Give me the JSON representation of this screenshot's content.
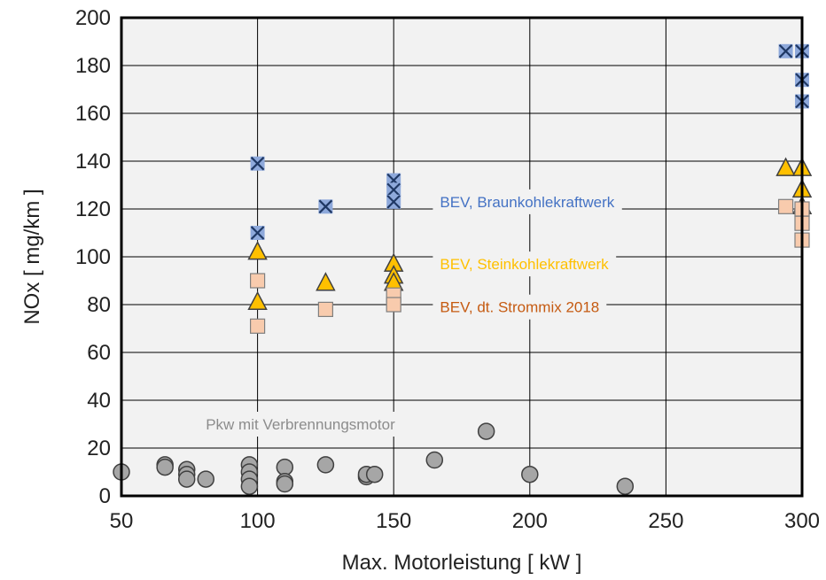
{
  "chart_data": {
    "type": "scatter",
    "xlabel": "Max. Motorleistung  [ kW ]",
    "ylabel": "NOx  [ mg/km ]",
    "xlim": [
      50,
      300
    ],
    "ylim": [
      0,
      200
    ],
    "x_ticks": [
      "50",
      "100",
      "150",
      "200",
      "250",
      "300"
    ],
    "y_ticks": [
      "0",
      "20",
      "40",
      "60",
      "80",
      "100",
      "120",
      "140",
      "160",
      "180",
      "200"
    ],
    "grid": true,
    "series": [
      {
        "name": "BEV, Braunkohlekraftwerk",
        "marker": "x-square",
        "color": "#4472C4",
        "points": [
          [
            100,
            139
          ],
          [
            100,
            110
          ],
          [
            125,
            121
          ],
          [
            150,
            132
          ],
          [
            150,
            128
          ],
          [
            150,
            123
          ],
          [
            294,
            186
          ],
          [
            300,
            186
          ],
          [
            300,
            174
          ],
          [
            300,
            165
          ]
        ]
      },
      {
        "name": "BEV, Steinkohlekraftwerk",
        "marker": "triangle",
        "color": "#FFC000",
        "points": [
          [
            100,
            102
          ],
          [
            100,
            81
          ],
          [
            125,
            89
          ],
          [
            150,
            97
          ],
          [
            150,
            92
          ],
          [
            150,
            89
          ],
          [
            294,
            137
          ],
          [
            300,
            137
          ],
          [
            300,
            128
          ],
          [
            300,
            121
          ]
        ]
      },
      {
        "name": "BEV, dt. Strommix 2018",
        "marker": "square",
        "color": "#ED7D31",
        "points": [
          [
            100,
            90
          ],
          [
            100,
            71
          ],
          [
            125,
            78
          ],
          [
            150,
            84
          ],
          [
            150,
            80
          ],
          [
            294,
            121
          ],
          [
            300,
            120
          ],
          [
            300,
            114
          ],
          [
            300,
            107
          ]
        ]
      },
      {
        "name": "Pkw mit Verbrennungsmotor",
        "marker": "circle",
        "color": "#A6A6A6",
        "points": [
          [
            50,
            10
          ],
          [
            66,
            13
          ],
          [
            66,
            12
          ],
          [
            74,
            11
          ],
          [
            74,
            9
          ],
          [
            74,
            7
          ],
          [
            81,
            7
          ],
          [
            97,
            13
          ],
          [
            97,
            10
          ],
          [
            97,
            7
          ],
          [
            97,
            4
          ],
          [
            110,
            12
          ],
          [
            110,
            6
          ],
          [
            110,
            5
          ],
          [
            125,
            13
          ],
          [
            140,
            8
          ],
          [
            140,
            9
          ],
          [
            143,
            9
          ],
          [
            165,
            15
          ],
          [
            184,
            27
          ],
          [
            200,
            9
          ],
          [
            235,
            4
          ]
        ]
      }
    ],
    "annotations": [
      {
        "text": "BEV, Braunkohlekraftwerk",
        "color": "#4472C4",
        "x": 167,
        "y": 123
      },
      {
        "text": "BEV, Steinkohlekraftwerk",
        "color": "#FFC000",
        "x": 167,
        "y": 97
      },
      {
        "text": "BEV, dt. Strommix 2018",
        "color": "#C55A11",
        "x": 167,
        "y": 79
      },
      {
        "text": "Pkw mit Verbrennungsmotor",
        "color": "#8C8C8C",
        "x": 81,
        "y": 30
      }
    ]
  }
}
